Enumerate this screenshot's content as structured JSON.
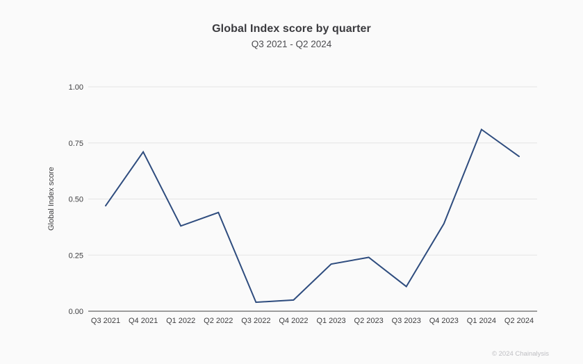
{
  "page": {
    "footer": "© 2024 Chainalysis"
  },
  "colors": {
    "background": "#fafafa",
    "line": "#2e4c7e",
    "grid": "#e4e4e4",
    "axis": "#9c9c9c",
    "tick_text": "#3d3d3f",
    "footer_text": "#bebec2"
  },
  "chart_data": {
    "type": "line",
    "title": "Global Index score by quarter",
    "subtitle": "Q3 2021 - Q2 2024",
    "categories": [
      "Q3 2021",
      "Q4 2021",
      "Q1 2022",
      "Q2 2022",
      "Q3 2022",
      "Q4 2022",
      "Q1 2023",
      "Q2 2023",
      "Q3 2023",
      "Q4 2023",
      "Q1 2024",
      "Q2 2024"
    ],
    "series": [
      {
        "name": "Global Index score",
        "values": [
          0.47,
          0.71,
          0.38,
          0.44,
          0.04,
          0.05,
          0.21,
          0.24,
          0.11,
          0.39,
          0.81,
          0.69
        ]
      }
    ],
    "xlabel": "",
    "ylabel": "Global Index score",
    "ylim": [
      0,
      1
    ],
    "y_ticks": [
      0,
      0.25,
      0.5,
      0.75,
      1
    ],
    "y_tick_labels": [
      "0.00",
      "0.25",
      "0.50",
      "0.75",
      "1.00"
    ],
    "grid": true,
    "legend": false,
    "markers": false
  }
}
